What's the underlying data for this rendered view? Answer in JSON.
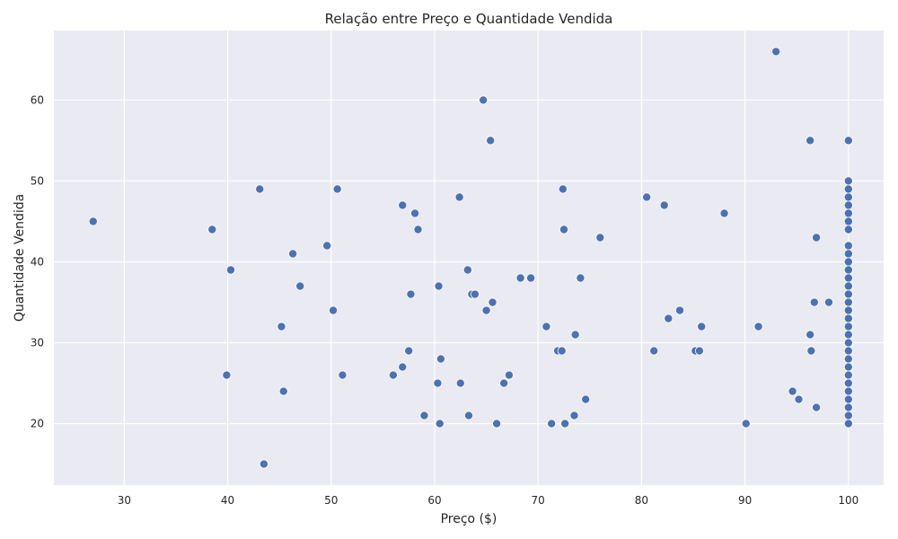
{
  "chart_data": {
    "type": "scatter",
    "title": "Relação entre Preço e Quantidade Vendida",
    "xlabel": "Preço ($)",
    "ylabel": "Quantidade Vendida",
    "xlim": [
      23.2,
      103.4
    ],
    "ylim": [
      12.4,
      68.6
    ],
    "xticks": [
      30,
      40,
      50,
      60,
      70,
      80,
      90,
      100
    ],
    "yticks": [
      20,
      30,
      40,
      50,
      60
    ],
    "grid": true,
    "legend": "none",
    "colors": {
      "background": "#eaeaf2",
      "grid": "#ffffff",
      "marker": "#4c72b0",
      "marker_edge": "#ffffff"
    },
    "points": [
      [
        27,
        45
      ],
      [
        38.5,
        44
      ],
      [
        39.9,
        26
      ],
      [
        40.3,
        39
      ],
      [
        43.1,
        49
      ],
      [
        43.5,
        15
      ],
      [
        45.2,
        32
      ],
      [
        45.4,
        24
      ],
      [
        46.3,
        41
      ],
      [
        47,
        37
      ],
      [
        49.6,
        42
      ],
      [
        50.2,
        34
      ],
      [
        50.6,
        49
      ],
      [
        51.1,
        26
      ],
      [
        56,
        26
      ],
      [
        56.9,
        47
      ],
      [
        56.9,
        27
      ],
      [
        57.5,
        29
      ],
      [
        57.7,
        36
      ],
      [
        58.1,
        46
      ],
      [
        58.4,
        44
      ],
      [
        59,
        21
      ],
      [
        60.3,
        25
      ],
      [
        60.4,
        37
      ],
      [
        60.5,
        20
      ],
      [
        60.6,
        28
      ],
      [
        62.4,
        48
      ],
      [
        62.5,
        25
      ],
      [
        63.2,
        39
      ],
      [
        63.3,
        21
      ],
      [
        63.6,
        36
      ],
      [
        63.9,
        36
      ],
      [
        64.7,
        60
      ],
      [
        65,
        34
      ],
      [
        65.4,
        55
      ],
      [
        65.6,
        35
      ],
      [
        66,
        20
      ],
      [
        66.7,
        25
      ],
      [
        67.2,
        26
      ],
      [
        68.3,
        38
      ],
      [
        69.3,
        38
      ],
      [
        70.8,
        32
      ],
      [
        71.3,
        20
      ],
      [
        71.9,
        29
      ],
      [
        72.3,
        29
      ],
      [
        72.4,
        49
      ],
      [
        72.5,
        44
      ],
      [
        72.6,
        20
      ],
      [
        73.5,
        21
      ],
      [
        73.6,
        31
      ],
      [
        74.1,
        38
      ],
      [
        74.6,
        23
      ],
      [
        76,
        43
      ],
      [
        80.5,
        48
      ],
      [
        81.2,
        29
      ],
      [
        82.2,
        47
      ],
      [
        82.6,
        33
      ],
      [
        83.7,
        34
      ],
      [
        85.2,
        29
      ],
      [
        85.6,
        29
      ],
      [
        85.8,
        32
      ],
      [
        88,
        46
      ],
      [
        90.1,
        20
      ],
      [
        91.3,
        32
      ],
      [
        93,
        66
      ],
      [
        94.6,
        24
      ],
      [
        95.2,
        23
      ],
      [
        96.3,
        55
      ],
      [
        96.3,
        31
      ],
      [
        96.4,
        29
      ],
      [
        96.7,
        35
      ],
      [
        96.9,
        43
      ],
      [
        96.9,
        22
      ],
      [
        98.1,
        35
      ],
      [
        100,
        55
      ],
      [
        100,
        50
      ],
      [
        100,
        49
      ],
      [
        100,
        48
      ],
      [
        100,
        47
      ],
      [
        100,
        46
      ],
      [
        100,
        45
      ],
      [
        100,
        44
      ],
      [
        100,
        42
      ],
      [
        100,
        41
      ],
      [
        100,
        40
      ],
      [
        100,
        39
      ],
      [
        100,
        38
      ],
      [
        100,
        37
      ],
      [
        100,
        36
      ],
      [
        100,
        35
      ],
      [
        100,
        34
      ],
      [
        100,
        33
      ],
      [
        100,
        32
      ],
      [
        100,
        31
      ],
      [
        100,
        30
      ],
      [
        100,
        29
      ],
      [
        100,
        28
      ],
      [
        100,
        27
      ],
      [
        100,
        26
      ],
      [
        100,
        25
      ],
      [
        100,
        24
      ],
      [
        100,
        23
      ],
      [
        100,
        22
      ],
      [
        100,
        21
      ],
      [
        100,
        20
      ]
    ]
  }
}
